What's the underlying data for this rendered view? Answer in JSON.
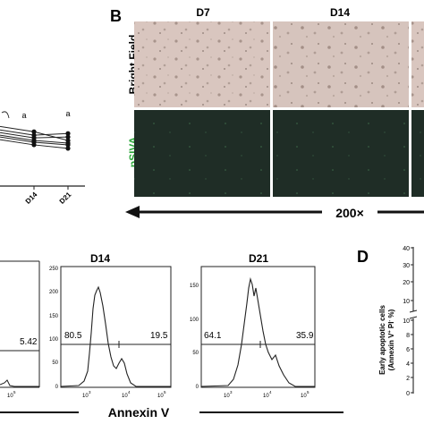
{
  "panel_a": {
    "significance": [
      "a",
      "a"
    ],
    "x_ticks": [
      "D14",
      "D21"
    ],
    "chart_data": {
      "type": "line",
      "x": [
        "D14",
        "D21"
      ],
      "series": [
        {
          "values": [
            0.62,
            0.52
          ]
        },
        {
          "values": [
            0.58,
            0.6
          ]
        },
        {
          "values": [
            0.55,
            0.56
          ]
        },
        {
          "values": [
            0.52,
            0.49
          ]
        },
        {
          "values": [
            0.5,
            0.47
          ]
        },
        {
          "values": [
            0.47,
            0.43
          ]
        }
      ],
      "grid": false
    }
  },
  "panel_b": {
    "label": "B",
    "columns": [
      "D7",
      "D14"
    ],
    "rows": [
      "Bright Field",
      "pSIVA"
    ],
    "magnification": "200×",
    "colors": {
      "bright_field": "#d9c6bf",
      "psiva": "#1f2d26",
      "psiva_label": "#2ea83c"
    }
  },
  "panel_c": {
    "x_axis_label": "Annexin V",
    "x_ticks": [
      "10",
      "3",
      "10",
      "4",
      "10",
      "5"
    ],
    "plots": [
      {
        "title": "",
        "gates": [
          "5.42"
        ]
      },
      {
        "title": "D14",
        "gates": [
          "80.5",
          "19.5"
        ],
        "y_ticks": [
          "250",
          "200",
          "150",
          "100",
          "50",
          "0"
        ]
      },
      {
        "title": "D21",
        "gates": [
          "64.1",
          "35.9"
        ],
        "y_ticks": [
          "150",
          "100",
          "50",
          "0"
        ]
      }
    ]
  },
  "panel_d": {
    "label": "D",
    "ylabel_line1": "Early apoptotic cells",
    "ylabel_line2": "(Annexin V",
    "ylabel_sup1": "+",
    "ylabel_mid": " PI",
    "ylabel_sup2": "-",
    "ylabel_end": " %)",
    "y_ticks": [
      "40",
      "30",
      "20",
      "10",
      "10",
      "8",
      "6",
      "4",
      "2",
      "0"
    ]
  }
}
